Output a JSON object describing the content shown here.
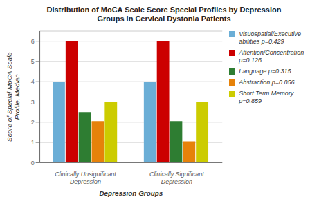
{
  "chart_data": {
    "type": "bar",
    "title": "Distribution of MoCA Scale Score Special Profiles by Depression\nGroups in Cervical Dystonia Patients",
    "xlabel": "Depression Groups",
    "ylabel": "Score of Special MoCA Scale\nProfile, Median",
    "categories": [
      "Clinically Unsignificant\nDepression",
      "Clinically Significant\nDepression"
    ],
    "series": [
      {
        "name": "Visuospatial/Executive\nabilities p=0.429",
        "color": "#6baed6",
        "values": [
          4.0,
          4.0
        ]
      },
      {
        "name": "Attention/Concentration\np=0.126",
        "color": "#cc0000",
        "values": [
          6.0,
          6.0
        ]
      },
      {
        "name": "Language p=0.315",
        "color": "#2e7d32",
        "values": [
          2.5,
          2.05
        ]
      },
      {
        "name": "Abstraction p=0.056",
        "color": "#e6820a",
        "values": [
          2.05,
          1.05
        ]
      },
      {
        "name": "Short Term Memory\np=0.859",
        "color": "#cccc00",
        "values": [
          3.0,
          3.0
        ]
      }
    ],
    "ylim": [
      0,
      6.5
    ],
    "yticks": [
      0,
      1,
      2,
      3,
      4,
      5,
      6
    ],
    "grid": true,
    "legend": "upper right"
  }
}
